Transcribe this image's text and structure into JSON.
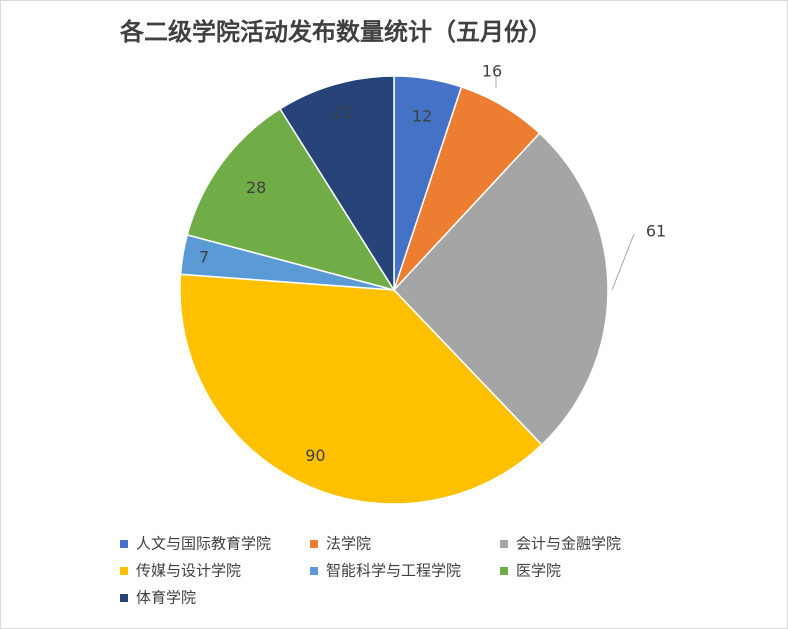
{
  "chart_data": {
    "type": "pie",
    "title": "各二级学院活动发布数量统计（五月份）",
    "categories": [
      "人文与国际教育学院",
      "法学院",
      "会计与金融学院",
      "传媒与设计学院",
      "智能科学与工程学院",
      "医学院",
      "体育学院"
    ],
    "values": [
      12,
      16,
      61,
      90,
      7,
      28,
      21
    ],
    "colors": [
      "#4472c4",
      "#ed7d31",
      "#a5a5a5",
      "#ffc000",
      "#5b9bd5",
      "#70ad47",
      "#264478"
    ],
    "legend": "bottom"
  }
}
